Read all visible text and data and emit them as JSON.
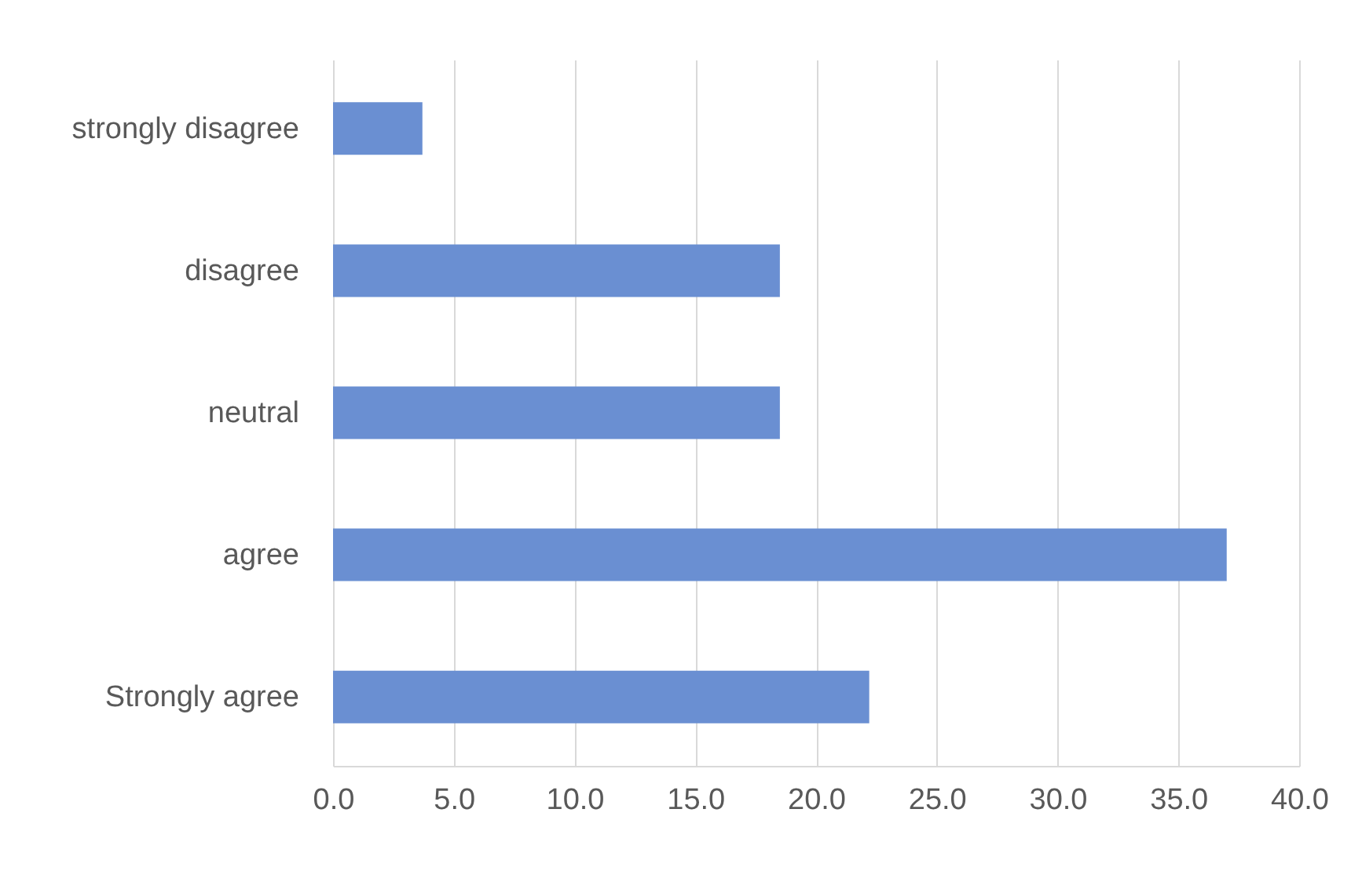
{
  "chart_data": {
    "type": "bar",
    "orientation": "horizontal",
    "categories": [
      "strongly disagree",
      "disagree",
      "neutral",
      "agree",
      "Strongly agree"
    ],
    "values": [
      3.7,
      18.5,
      18.5,
      37.0,
      22.2
    ],
    "color": "#6a8fd2",
    "xlim": [
      0,
      40
    ],
    "xticks": [
      {
        "value": 0,
        "label": "0.0"
      },
      {
        "value": 5,
        "label": "5.0"
      },
      {
        "value": 10,
        "label": "10.0"
      },
      {
        "value": 15,
        "label": "15.0"
      },
      {
        "value": 20,
        "label": "20.0"
      },
      {
        "value": 25,
        "label": "25.0"
      },
      {
        "value": 30,
        "label": "30.0"
      },
      {
        "value": 35,
        "label": "35.0"
      },
      {
        "value": 40,
        "label": "40.0"
      }
    ],
    "grid": "x"
  }
}
